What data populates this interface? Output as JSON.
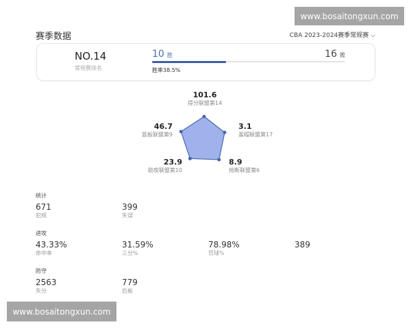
{
  "header": {
    "title": "赛季数据",
    "season": "CBA 2023-2024赛季常规赛",
    "chevron_icon": "chevron-down-icon"
  },
  "summary": {
    "rank": "NO.14",
    "rank_label": "常规赛排名",
    "wins": "10",
    "wins_unit": "胜",
    "losses": "16",
    "losses_unit": "败",
    "win_rate_text": "胜率38.5%",
    "win_rate": 0.385,
    "accent": "#3f5ea8"
  },
  "radar": {
    "axes": [
      {
        "value": "101.6",
        "label": "得分联盟第14",
        "rank": 14
      },
      {
        "value": "3.1",
        "label": "盖帽联盟第17",
        "rank": 17
      },
      {
        "value": "8.9",
        "label": "抢断联盟第6",
        "rank": 6
      },
      {
        "value": "23.9",
        "label": "助攻联盟第10",
        "rank": 10
      },
      {
        "value": "46.7",
        "label": "篮板联盟第9",
        "rank": 9
      }
    ],
    "fill": "#8ea6e6",
    "stroke": "#4a63b0"
  },
  "sections": [
    {
      "title": "统计",
      "items": [
        {
          "value": "671",
          "label": "犯规"
        },
        {
          "value": "399",
          "label": "失误"
        }
      ]
    },
    {
      "title": "进攻",
      "items": [
        {
          "value": "43.33%",
          "label": "命中率"
        },
        {
          "value": "31.59%",
          "label": "三分%"
        },
        {
          "value": "78.98%",
          "label": "罚球%"
        },
        {
          "value": "389",
          "label": ""
        }
      ]
    },
    {
      "title": "防守",
      "items": [
        {
          "value": "2563",
          "label": "失分"
        },
        {
          "value": "779",
          "label": "后板"
        }
      ]
    }
  ],
  "watermark": "www.bosaitongxun.com"
}
